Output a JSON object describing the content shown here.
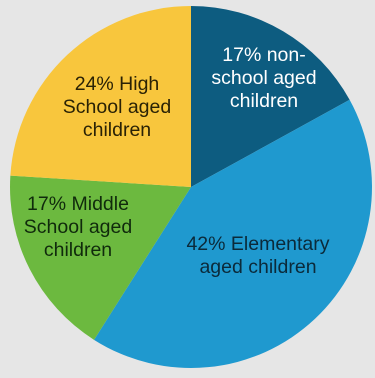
{
  "chart_data": {
    "type": "pie",
    "slices": [
      {
        "label_lines": [
          "17% non-",
          "school aged",
          "children"
        ],
        "value": 17,
        "color": "#0d5c80",
        "text_color": "#ffffff"
      },
      {
        "label_lines": [
          "42% Elementary",
          "aged children"
        ],
        "value": 42,
        "color": "#1f99cf",
        "text_color": "#0b2a3a"
      },
      {
        "label_lines": [
          "17% Middle",
          "School aged",
          "children"
        ],
        "value": 17,
        "color": "#6cb93f",
        "text_color": "#102a0c"
      },
      {
        "label_lines": [
          "24% High",
          "School aged",
          "children"
        ],
        "value": 24,
        "color": "#f8c63d",
        "text_color": "#2a2205"
      }
    ]
  }
}
